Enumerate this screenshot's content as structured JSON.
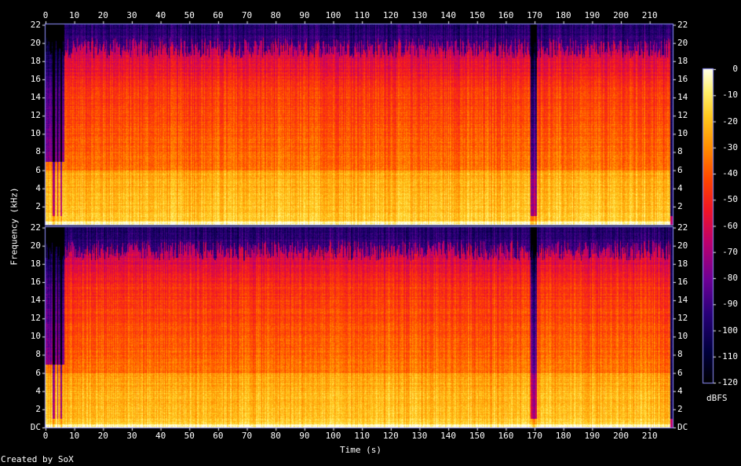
{
  "chart_data": {
    "type": "heatmap",
    "subtype": "spectrogram",
    "xlabel": "Time (s)",
    "ylabel": "Frequency (kHz)",
    "x_ticks": [
      0,
      10,
      20,
      30,
      40,
      50,
      60,
      70,
      80,
      90,
      100,
      110,
      120,
      130,
      140,
      150,
      160,
      170,
      180,
      190,
      200,
      210
    ],
    "xlim": [
      0,
      218
    ],
    "channels": [
      {
        "name": "top",
        "y_ticks": [
          "22",
          "20",
          "18",
          "16",
          "14",
          "12",
          "10",
          "8",
          "6",
          "4",
          "2"
        ],
        "ylim": [
          0,
          22.05
        ]
      },
      {
        "name": "bottom",
        "y_ticks": [
          "22",
          "20",
          "18",
          "16",
          "14",
          "12",
          "10",
          "8",
          "6",
          "4",
          "2",
          "DC"
        ],
        "ylim": [
          0,
          22.05
        ]
      }
    ],
    "colorbar": {
      "unit": "dBFS",
      "ticks": [
        0,
        -10,
        -20,
        -30,
        -40,
        -50,
        -60,
        -70,
        -80,
        -90,
        -100,
        -110,
        -120
      ],
      "range": [
        -120,
        0
      ]
    },
    "features": {
      "low_energy_gaps_s": [
        3,
        5,
        170
      ],
      "cutoff_khz_approx": 19.5,
      "end_s": 217
    }
  },
  "credit": "Created by SoX",
  "colors": {
    "background": "#000000",
    "text": "#ffffff",
    "hot": "#ffffc0",
    "mid": "#ff2000",
    "cool": "#600090",
    "cold": "#000040"
  }
}
